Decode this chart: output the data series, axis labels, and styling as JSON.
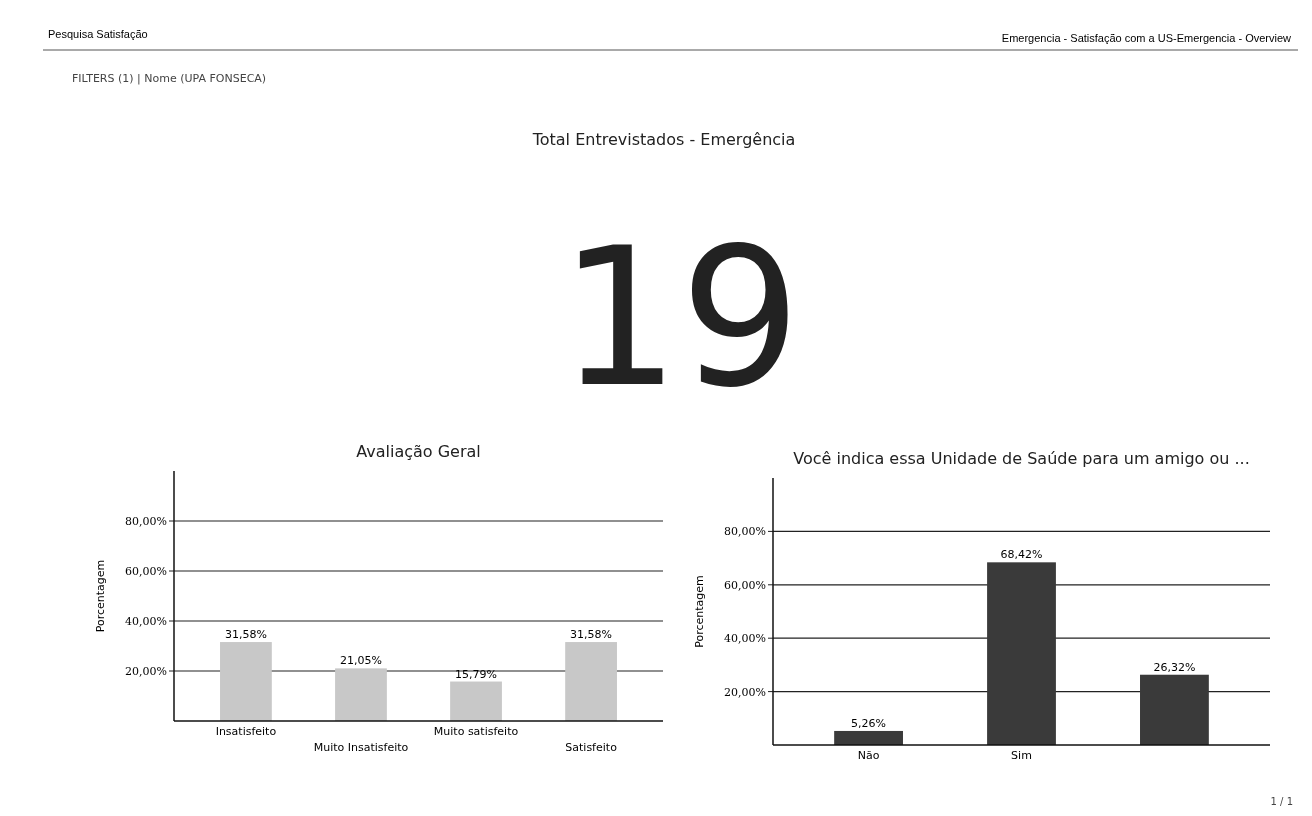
{
  "chart_data": [
    {
      "type": "other",
      "title": "Total Entrevistados - Emergência",
      "categories": [
        null
      ],
      "values": [
        19
      ],
      "value_labels": [
        "19"
      ],
      "annotations": [
        "Pesquisa Satisfação",
        "Emergencia  -  Satisfação com a US-Emergencia  -  Overview",
        "FILTERS (1)  |  Nome (UPA FONSECA)",
        "1 / 1"
      ]
    },
    {
      "type": "bar",
      "title": "Avaliação Geral",
      "ylabel": "Porcentagem",
      "categories": [
        "Insatisfeito",
        "Muito Insatisfeito",
        "Muito satisfeito",
        "Satisfeito"
      ],
      "values": [
        31.58,
        21.05,
        15.79,
        31.58
      ],
      "value_labels": [
        "31,58%",
        "21,05%",
        "15,79%",
        "31,58%"
      ],
      "color": "#c8c8c8",
      "ylim": [
        0,
        100
      ],
      "yticks": [
        {
          "value": 20,
          "label": "20,00%"
        },
        {
          "value": 40,
          "label": "40,00%"
        },
        {
          "value": 60,
          "label": "60,00%"
        },
        {
          "value": 80,
          "label": "80,00%"
        }
      ],
      "grid": "y"
    },
    {
      "type": "bar",
      "title": "Você indica essa Unidade de Saúde para um amigo ou ...",
      "ylabel": "Porcentagem",
      "categories": [
        "Não",
        "Sim",
        null
      ],
      "values": [
        5.26,
        68.42,
        26.32
      ],
      "value_labels": [
        "5,26%",
        "68,42%",
        "26,32%"
      ],
      "color": "#3a3a3a",
      "ylim": [
        0,
        100
      ],
      "yticks": [
        {
          "value": 20,
          "label": "20,00%"
        },
        {
          "value": 40,
          "label": "40,00%"
        },
        {
          "value": 60,
          "label": "60,00%"
        },
        {
          "value": 80,
          "label": "80,00%"
        }
      ],
      "grid": "y"
    }
  ]
}
